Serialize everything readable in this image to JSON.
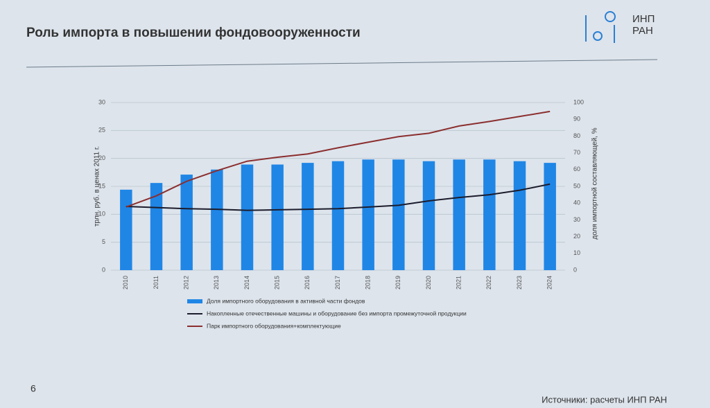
{
  "header": {
    "title": "Роль импорта в повышении фондовооруженности",
    "logo_lines": [
      "ИНП",
      "РАН"
    ]
  },
  "footer": {
    "page_number": "6",
    "source": "Источники: расчеты ИНП РАН"
  },
  "chart_data": {
    "type": "combo",
    "categories": [
      "2010",
      "2011",
      "2012",
      "2013",
      "2014",
      "2015",
      "2016",
      "2017",
      "2018",
      "2019",
      "2020",
      "2021",
      "2022",
      "2023",
      "2024"
    ],
    "ylabel": "трлн. руб. в ценах 2011 г.",
    "y2label": "доля импортной составляющей, %",
    "ylim": [
      0,
      30
    ],
    "yticks": [
      0,
      5,
      10,
      15,
      20,
      25,
      30
    ],
    "y2lim": [
      0,
      100
    ],
    "y2ticks": [
      0,
      10,
      20,
      30,
      40,
      50,
      60,
      70,
      80,
      90,
      100
    ],
    "grid": true,
    "series": [
      {
        "name": "Доля импортного оборудования в активной части фондов",
        "type": "bar",
        "axis": "y2",
        "color": "#1f86e6",
        "values": [
          48,
          52,
          57,
          60,
          63,
          63,
          64,
          65,
          66,
          66,
          65,
          66,
          66,
          65,
          64
        ]
      },
      {
        "name": "Накопленные отечественные машины и оборудование без импорта промежуточной продукции",
        "type": "line",
        "color": "#1c1c2c",
        "values": [
          11.4,
          11.2,
          11.0,
          10.9,
          10.7,
          10.8,
          10.9,
          11.0,
          11.3,
          11.6,
          12.4,
          13.0,
          13.5,
          14.3,
          15.4
        ]
      },
      {
        "name": "Парк импортного оборудования+комплектующие",
        "type": "line",
        "color": "#8b2e2e",
        "values": [
          11.3,
          13.3,
          15.9,
          17.8,
          19.5,
          20.2,
          20.8,
          21.9,
          22.9,
          23.9,
          24.5,
          25.8,
          26.6,
          27.5,
          28.4
        ]
      }
    ]
  }
}
